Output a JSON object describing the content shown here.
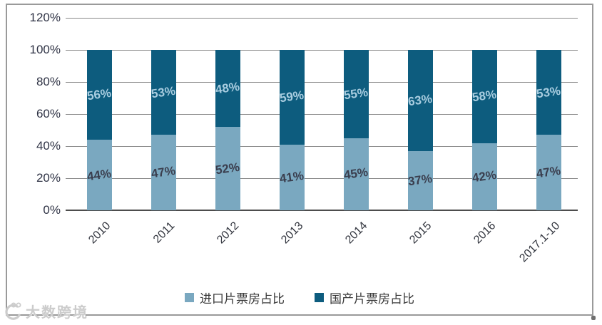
{
  "watermark": {
    "text": "大数跨境"
  },
  "chart_data": {
    "type": "bar",
    "stacked": true,
    "title": "",
    "xlabel": "",
    "ylabel": "",
    "categories": [
      "2010",
      "2011",
      "2012",
      "2013",
      "2014",
      "2015",
      "2016",
      "2017.1-10"
    ],
    "series": [
      {
        "name": "进口片票房占比",
        "color": "#7aa8c0",
        "label_color": "#3a3e4e",
        "values": [
          44,
          47,
          52,
          41,
          45,
          37,
          42,
          47
        ]
      },
      {
        "name": "国产片票房占比",
        "color": "#0d5c7e",
        "label_color": "#a9cde0",
        "values": [
          56,
          53,
          48,
          59,
          55,
          63,
          58,
          53
        ]
      }
    ],
    "data_labels": {
      "进口片票房占比": [
        "44%",
        "47%",
        "52%",
        "41%",
        "45%",
        "37%",
        "42%",
        "47%"
      ],
      "国产片票房占比": [
        "56%",
        "53%",
        "48%",
        "59%",
        "55%",
        "63%",
        "58%",
        "53%"
      ]
    },
    "y_ticks": [
      "0%",
      "20%",
      "40%",
      "60%",
      "80%",
      "100%",
      "120%"
    ],
    "ylim": [
      0,
      120
    ],
    "grid": true,
    "gridline_color": "#8a8a8a",
    "axis_line_color": "#4d4d4d",
    "legend_position": "bottom",
    "x_tick_rotation_deg": -45
  }
}
